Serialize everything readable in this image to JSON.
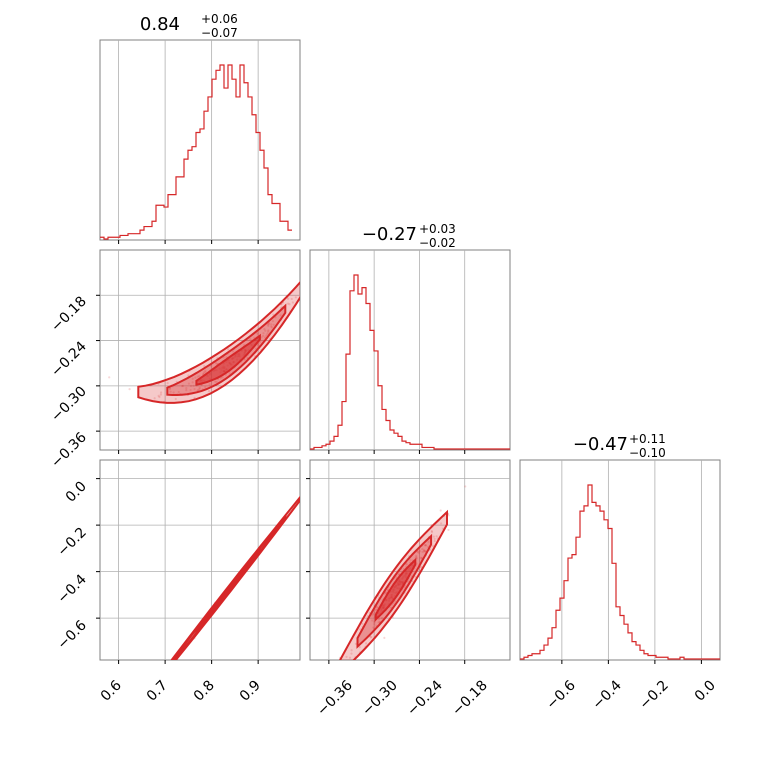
{
  "chart_data": {
    "type": "corner",
    "color": "#d62728",
    "grid": true,
    "parameters": [
      {
        "title_value": "0.84",
        "title_plus": "+0.06",
        "title_minus": "−0.07",
        "range": [
          0.56,
          0.99
        ],
        "ticks": [
          0.6,
          0.7,
          0.8,
          0.9
        ],
        "tick_labels": [
          "0.6",
          "0.7",
          "0.8",
          "0.9"
        ],
        "median": 0.84,
        "minus": 0.07,
        "plus": 0.06
      },
      {
        "title_value": "−0.27",
        "title_plus": "+0.03",
        "title_minus": "−0.02",
        "range": [
          -0.385,
          -0.12
        ],
        "ticks": [
          -0.36,
          -0.3,
          -0.24,
          -0.18
        ],
        "tick_labels": [
          "−0.36",
          "−0.30",
          "−0.24",
          "−0.18"
        ],
        "median": -0.27,
        "minus": 0.02,
        "plus": 0.03
      },
      {
        "title_value": "−0.47",
        "title_plus": "+0.11",
        "title_minus": "−0.10",
        "range": [
          -0.78,
          0.08
        ],
        "ticks": [
          -0.6,
          -0.4,
          -0.2,
          0.0
        ],
        "tick_labels": [
          "−0.6",
          "−0.4",
          "−0.2",
          "0.0"
        ],
        "median": -0.47,
        "minus": 0.1,
        "plus": 0.11
      }
    ],
    "histograms": [
      {
        "bin_edges_start": 0.56,
        "bin_width": 0.0086,
        "counts": [
          1,
          0,
          1,
          1,
          1,
          2,
          2,
          3,
          3,
          3,
          5,
          7,
          7,
          10,
          19,
          19,
          18,
          25,
          25,
          35,
          35,
          45,
          50,
          52,
          60,
          62,
          72,
          80,
          90,
          95,
          98,
          85,
          98,
          90,
          80,
          98,
          88,
          80,
          70,
          60,
          50,
          40,
          25,
          20,
          20,
          10,
          10,
          5
        ]
      },
      {
        "bin_edges_start": -0.385,
        "bin_width": 0.0053,
        "counts": [
          0,
          1,
          1,
          2,
          3,
          5,
          8,
          15,
          30,
          60,
          100,
          110,
          98,
          102,
          92,
          75,
          62,
          40,
          25,
          18,
          12,
          10,
          8,
          5,
          4,
          3,
          3,
          3,
          1,
          1,
          1,
          0,
          0,
          0,
          0,
          0,
          0,
          0,
          0,
          0,
          0,
          0,
          0,
          0,
          0,
          0,
          0,
          0,
          0,
          0
        ]
      },
      {
        "bin_edges_start": -0.78,
        "bin_width": 0.0172,
        "counts": [
          0,
          1,
          2,
          3,
          3,
          5,
          8,
          12,
          18,
          28,
          35,
          45,
          58,
          60,
          70,
          85,
          88,
          100,
          90,
          88,
          85,
          80,
          75,
          55,
          30,
          25,
          20,
          15,
          10,
          8,
          5,
          3,
          2,
          2,
          1,
          1,
          1,
          0,
          0,
          0,
          1,
          0,
          0,
          0,
          0,
          0,
          0,
          0,
          0,
          0
        ]
      }
    ],
    "pairs": [
      {
        "x_param": 0,
        "y_param": 1,
        "relation": "y = -0.27 + 1.3*(x-0.84)^2 + 0.45*(x-0.84)"
      },
      {
        "x_param": 0,
        "y_param": 2,
        "relation": "y = -0.47 + 2.55*(x-0.84)"
      },
      {
        "x_param": 1,
        "y_param": 2,
        "relation": "y = -0.47 + 4.5*(x+0.27)"
      }
    ]
  }
}
